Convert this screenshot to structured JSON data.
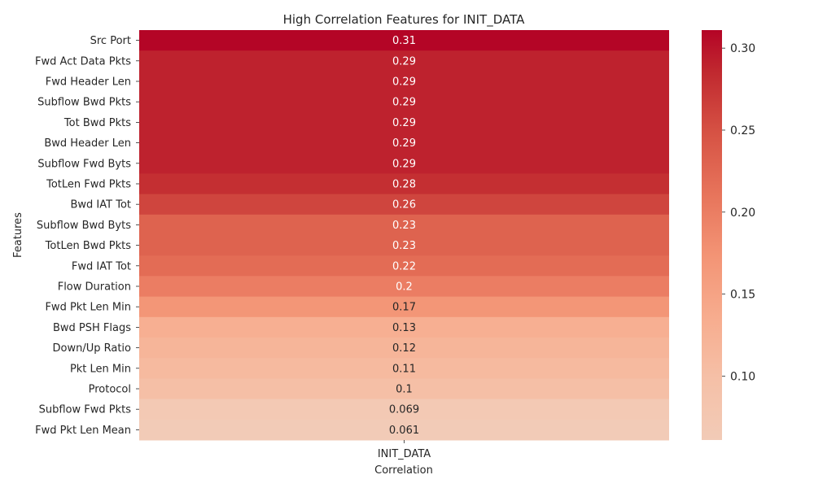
{
  "chart_data": {
    "type": "heatmap",
    "title": "High Correlation Features for INIT_DATA",
    "xlabel": "Correlation",
    "ylabel": "Features",
    "columns": [
      "INIT_DATA"
    ],
    "rows": [
      {
        "feature": "Src Port",
        "value": 0.31,
        "label": "0.31"
      },
      {
        "feature": "Fwd Act Data Pkts",
        "value": 0.29,
        "label": "0.29"
      },
      {
        "feature": "Fwd Header Len",
        "value": 0.29,
        "label": "0.29"
      },
      {
        "feature": "Subflow Bwd Pkts",
        "value": 0.29,
        "label": "0.29"
      },
      {
        "feature": "Tot Bwd Pkts",
        "value": 0.29,
        "label": "0.29"
      },
      {
        "feature": "Bwd Header Len",
        "value": 0.29,
        "label": "0.29"
      },
      {
        "feature": "Subflow Fwd Byts",
        "value": 0.29,
        "label": "0.29"
      },
      {
        "feature": "TotLen Fwd Pkts",
        "value": 0.28,
        "label": "0.28"
      },
      {
        "feature": "Bwd IAT Tot",
        "value": 0.26,
        "label": "0.26"
      },
      {
        "feature": "Subflow Bwd Byts",
        "value": 0.23,
        "label": "0.23"
      },
      {
        "feature": "TotLen Bwd Pkts",
        "value": 0.23,
        "label": "0.23"
      },
      {
        "feature": "Fwd IAT Tot",
        "value": 0.22,
        "label": "0.22"
      },
      {
        "feature": "Flow Duration",
        "value": 0.2,
        "label": "0.2"
      },
      {
        "feature": "Fwd Pkt Len Min",
        "value": 0.17,
        "label": "0.17"
      },
      {
        "feature": "Bwd PSH Flags",
        "value": 0.13,
        "label": "0.13"
      },
      {
        "feature": "Down/Up Ratio",
        "value": 0.12,
        "label": "0.12"
      },
      {
        "feature": "Pkt Len Min",
        "value": 0.11,
        "label": "0.11"
      },
      {
        "feature": "Protocol",
        "value": 0.1,
        "label": "0.1"
      },
      {
        "feature": "Subflow Fwd Pkts",
        "value": 0.069,
        "label": "0.069"
      },
      {
        "feature": "Fwd Pkt Len Mean",
        "value": 0.061,
        "label": "0.061"
      }
    ],
    "colorbar": {
      "min": 0.061,
      "max": 0.311,
      "ticks": [
        {
          "value": 0.1,
          "label": "0.10"
        },
        {
          "value": 0.15,
          "label": "0.15"
        },
        {
          "value": 0.2,
          "label": "0.20"
        },
        {
          "value": 0.25,
          "label": "0.25"
        },
        {
          "value": 0.3,
          "label": "0.30"
        }
      ],
      "colormap": "coolwarm-upper",
      "stops": [
        {
          "t": 0.0,
          "color": "#f2cbb7"
        },
        {
          "t": 0.15,
          "color": "#f5c0a7"
        },
        {
          "t": 0.3,
          "color": "#f7ac8e"
        },
        {
          "t": 0.45,
          "color": "#f39475"
        },
        {
          "t": 0.6,
          "color": "#e7745b"
        },
        {
          "t": 0.75,
          "color": "#d65244"
        },
        {
          "t": 0.9,
          "color": "#c0282f"
        },
        {
          "t": 1.0,
          "color": "#b40426"
        }
      ]
    }
  }
}
